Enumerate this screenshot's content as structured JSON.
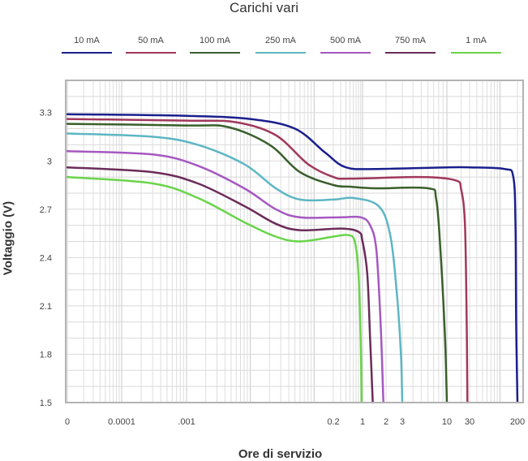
{
  "chart_data": {
    "type": "line",
    "title": "Carichi vari",
    "xlabel": "Ore di servizio",
    "ylabel": "Voltaggio (V)",
    "x_scale": "log",
    "ylim": [
      1.5,
      3.5
    ],
    "y_ticks": [
      "3.3",
      "3",
      "2.7",
      "2.4",
      "2.1",
      "1.8",
      "1.5"
    ],
    "x_ticks": [
      "0",
      "0.0001",
      ".001",
      "0.2",
      "1",
      "2",
      "3",
      "10",
      "30",
      "200"
    ],
    "grid": true,
    "legend_position": "top",
    "series": [
      {
        "name": "10 mA",
        "color": "#1a1f8c",
        "points": [
          [
            1e-05,
            3.29
          ],
          [
            0.001,
            3.28
          ],
          [
            0.01,
            3.26
          ],
          [
            0.05,
            3.2
          ],
          [
            0.15,
            3.05
          ],
          [
            0.4,
            2.96
          ],
          [
            1.5,
            2.95
          ],
          [
            10,
            2.96
          ],
          [
            30,
            2.96
          ],
          [
            120,
            2.95
          ],
          [
            170,
            2.9
          ],
          [
            185,
            2.6
          ],
          [
            190,
            2.0
          ],
          [
            200,
            1.5
          ]
        ]
      },
      {
        "name": "50 mA",
        "color": "#a0385a",
        "points": [
          [
            1e-05,
            3.26
          ],
          [
            0.001,
            3.25
          ],
          [
            0.006,
            3.24
          ],
          [
            0.025,
            3.16
          ],
          [
            0.08,
            2.98
          ],
          [
            0.2,
            2.9
          ],
          [
            0.5,
            2.89
          ],
          [
            5,
            2.9
          ],
          [
            15,
            2.88
          ],
          [
            20,
            2.82
          ],
          [
            24,
            2.6
          ],
          [
            26,
            2.0
          ],
          [
            27,
            1.5
          ]
        ]
      },
      {
        "name": "100 mA",
        "color": "#3a5f2c",
        "points": [
          [
            1e-05,
            3.23
          ],
          [
            0.001,
            3.22
          ],
          [
            0.0045,
            3.21
          ],
          [
            0.02,
            3.1
          ],
          [
            0.06,
            2.93
          ],
          [
            0.2,
            2.85
          ],
          [
            0.5,
            2.84
          ],
          [
            1.5,
            2.83
          ],
          [
            6,
            2.83
          ],
          [
            7.5,
            2.76
          ],
          [
            8.5,
            2.4
          ],
          [
            9.5,
            1.9
          ],
          [
            10,
            1.5
          ]
        ]
      },
      {
        "name": "250 mA",
        "color": "#5db6c3",
        "points": [
          [
            1e-05,
            3.17
          ],
          [
            0.0003,
            3.15
          ],
          [
            0.0015,
            3.1
          ],
          [
            0.008,
            2.98
          ],
          [
            0.025,
            2.83
          ],
          [
            0.06,
            2.76
          ],
          [
            0.2,
            2.76
          ],
          [
            0.6,
            2.77
          ],
          [
            1.6,
            2.72
          ],
          [
            2.2,
            2.55
          ],
          [
            2.6,
            2.2
          ],
          [
            2.9,
            1.8
          ],
          [
            3.0,
            1.5
          ]
        ]
      },
      {
        "name": "500 mA",
        "color": "#a558c0",
        "points": [
          [
            1e-05,
            3.06
          ],
          [
            0.0003,
            3.04
          ],
          [
            0.0015,
            2.97
          ],
          [
            0.008,
            2.83
          ],
          [
            0.025,
            2.7
          ],
          [
            0.06,
            2.65
          ],
          [
            0.3,
            2.65
          ],
          [
            0.9,
            2.65
          ],
          [
            1.25,
            2.6
          ],
          [
            1.5,
            2.45
          ],
          [
            1.7,
            2.0
          ],
          [
            1.85,
            1.5
          ]
        ]
      },
      {
        "name": "750 mA",
        "color": "#6b2c5a",
        "points": [
          [
            1e-05,
            2.96
          ],
          [
            0.0003,
            2.93
          ],
          [
            0.0015,
            2.86
          ],
          [
            0.008,
            2.72
          ],
          [
            0.025,
            2.61
          ],
          [
            0.06,
            2.57
          ],
          [
            0.3,
            2.58
          ],
          [
            0.8,
            2.56
          ],
          [
            1.0,
            2.5
          ],
          [
            1.15,
            2.3
          ],
          [
            1.25,
            1.9
          ],
          [
            1.35,
            1.5
          ]
        ]
      },
      {
        "name": "1 mA",
        "color": "#6ad44a",
        "points": [
          [
            1e-05,
            2.9
          ],
          [
            0.0003,
            2.86
          ],
          [
            0.0015,
            2.77
          ],
          [
            0.008,
            2.62
          ],
          [
            0.025,
            2.53
          ],
          [
            0.06,
            2.5
          ],
          [
            0.2,
            2.53
          ],
          [
            0.45,
            2.54
          ],
          [
            0.65,
            2.5
          ],
          [
            0.8,
            2.3
          ],
          [
            0.9,
            1.9
          ],
          [
            0.95,
            1.5
          ]
        ]
      }
    ]
  }
}
